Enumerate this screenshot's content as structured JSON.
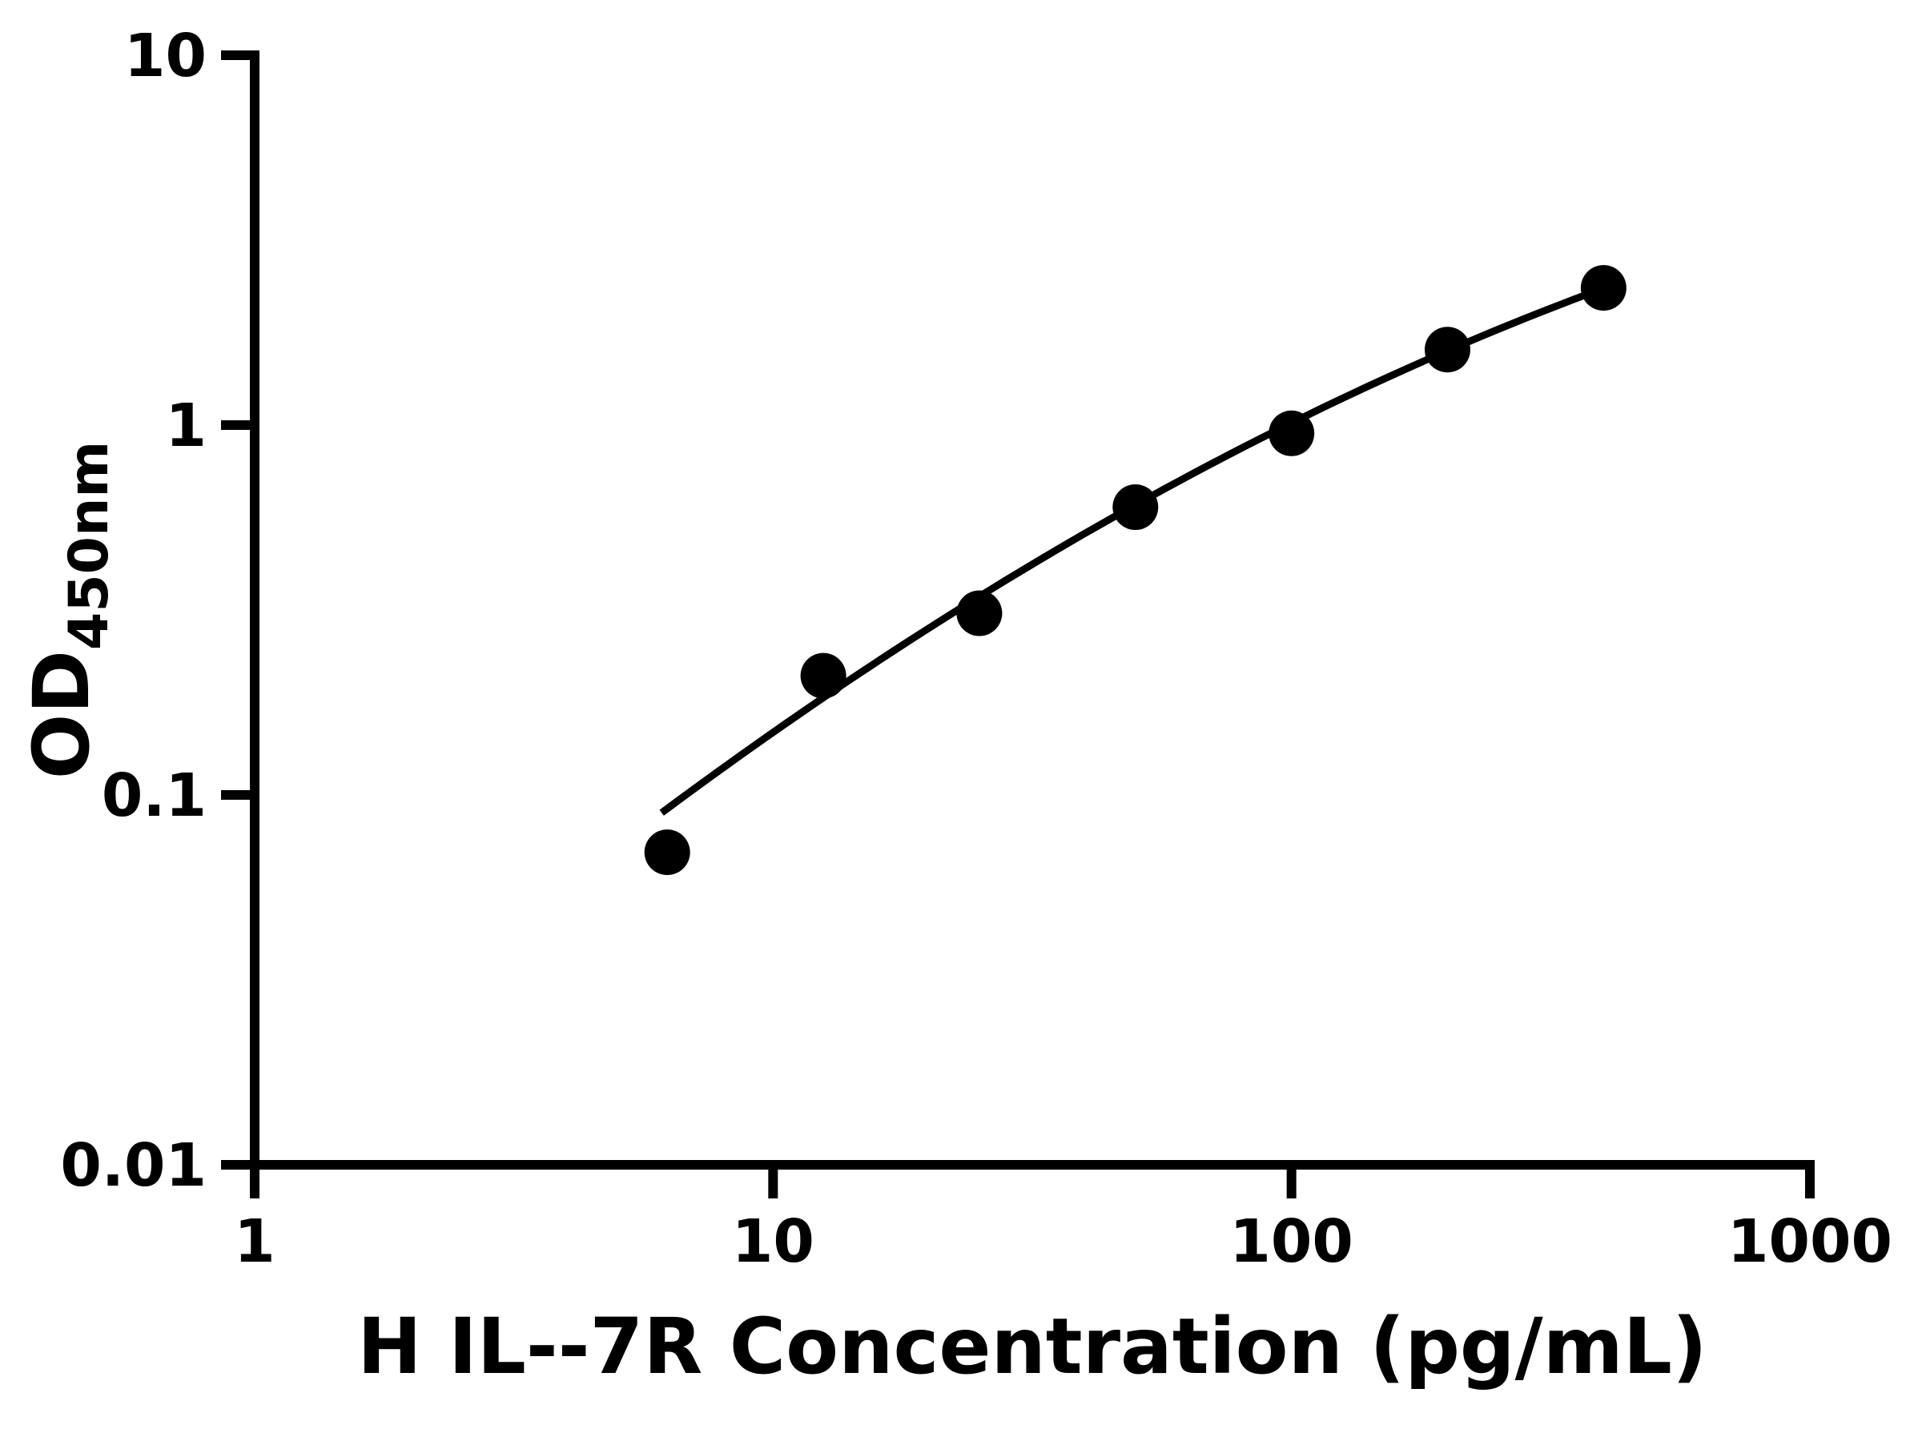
{
  "chart_data": {
    "type": "scatter",
    "xlabel": "H IL--7R Concentration (pg/mL)",
    "ylabel_main": "OD",
    "ylabel_sub": "450nm",
    "x_scale": "log",
    "y_scale": "log",
    "xlim": [
      1,
      1000
    ],
    "ylim": [
      0.01,
      10
    ],
    "grid": false,
    "legend": null,
    "x_ticks": [
      {
        "value": 1,
        "label": "1"
      },
      {
        "value": 10,
        "label": "10"
      },
      {
        "value": 100,
        "label": "100"
      },
      {
        "value": 1000,
        "label": "1000"
      }
    ],
    "y_ticks": [
      {
        "value": 10,
        "label": "10"
      },
      {
        "value": 1,
        "label": "1"
      },
      {
        "value": 0.1,
        "label": "0.1"
      },
      {
        "value": 0.01,
        "label": "0.01"
      }
    ],
    "series": [
      {
        "name": "standard-curve-points",
        "marker": "filled-circle",
        "points": [
          {
            "x": 6.25,
            "y": 0.07
          },
          {
            "x": 12.5,
            "y": 0.21
          },
          {
            "x": 25,
            "y": 0.31
          },
          {
            "x": 50,
            "y": 0.6
          },
          {
            "x": 100,
            "y": 0.95
          },
          {
            "x": 200,
            "y": 1.6
          },
          {
            "x": 400,
            "y": 2.35
          }
        ]
      }
    ],
    "fit_curve": {
      "model": "quadratic_loglog",
      "description": "log10(OD) = a + b*log10(conc) + c*log10(conc)^2",
      "a": -1.956,
      "b": 1.2695,
      "c": -0.1443,
      "log_x_start": 0.785,
      "log_x_end": 2.602
    },
    "colors": {
      "marker": "#000000",
      "curve": "#000000",
      "axis": "#000000",
      "text": "#000000",
      "background": "#ffffff"
    }
  }
}
